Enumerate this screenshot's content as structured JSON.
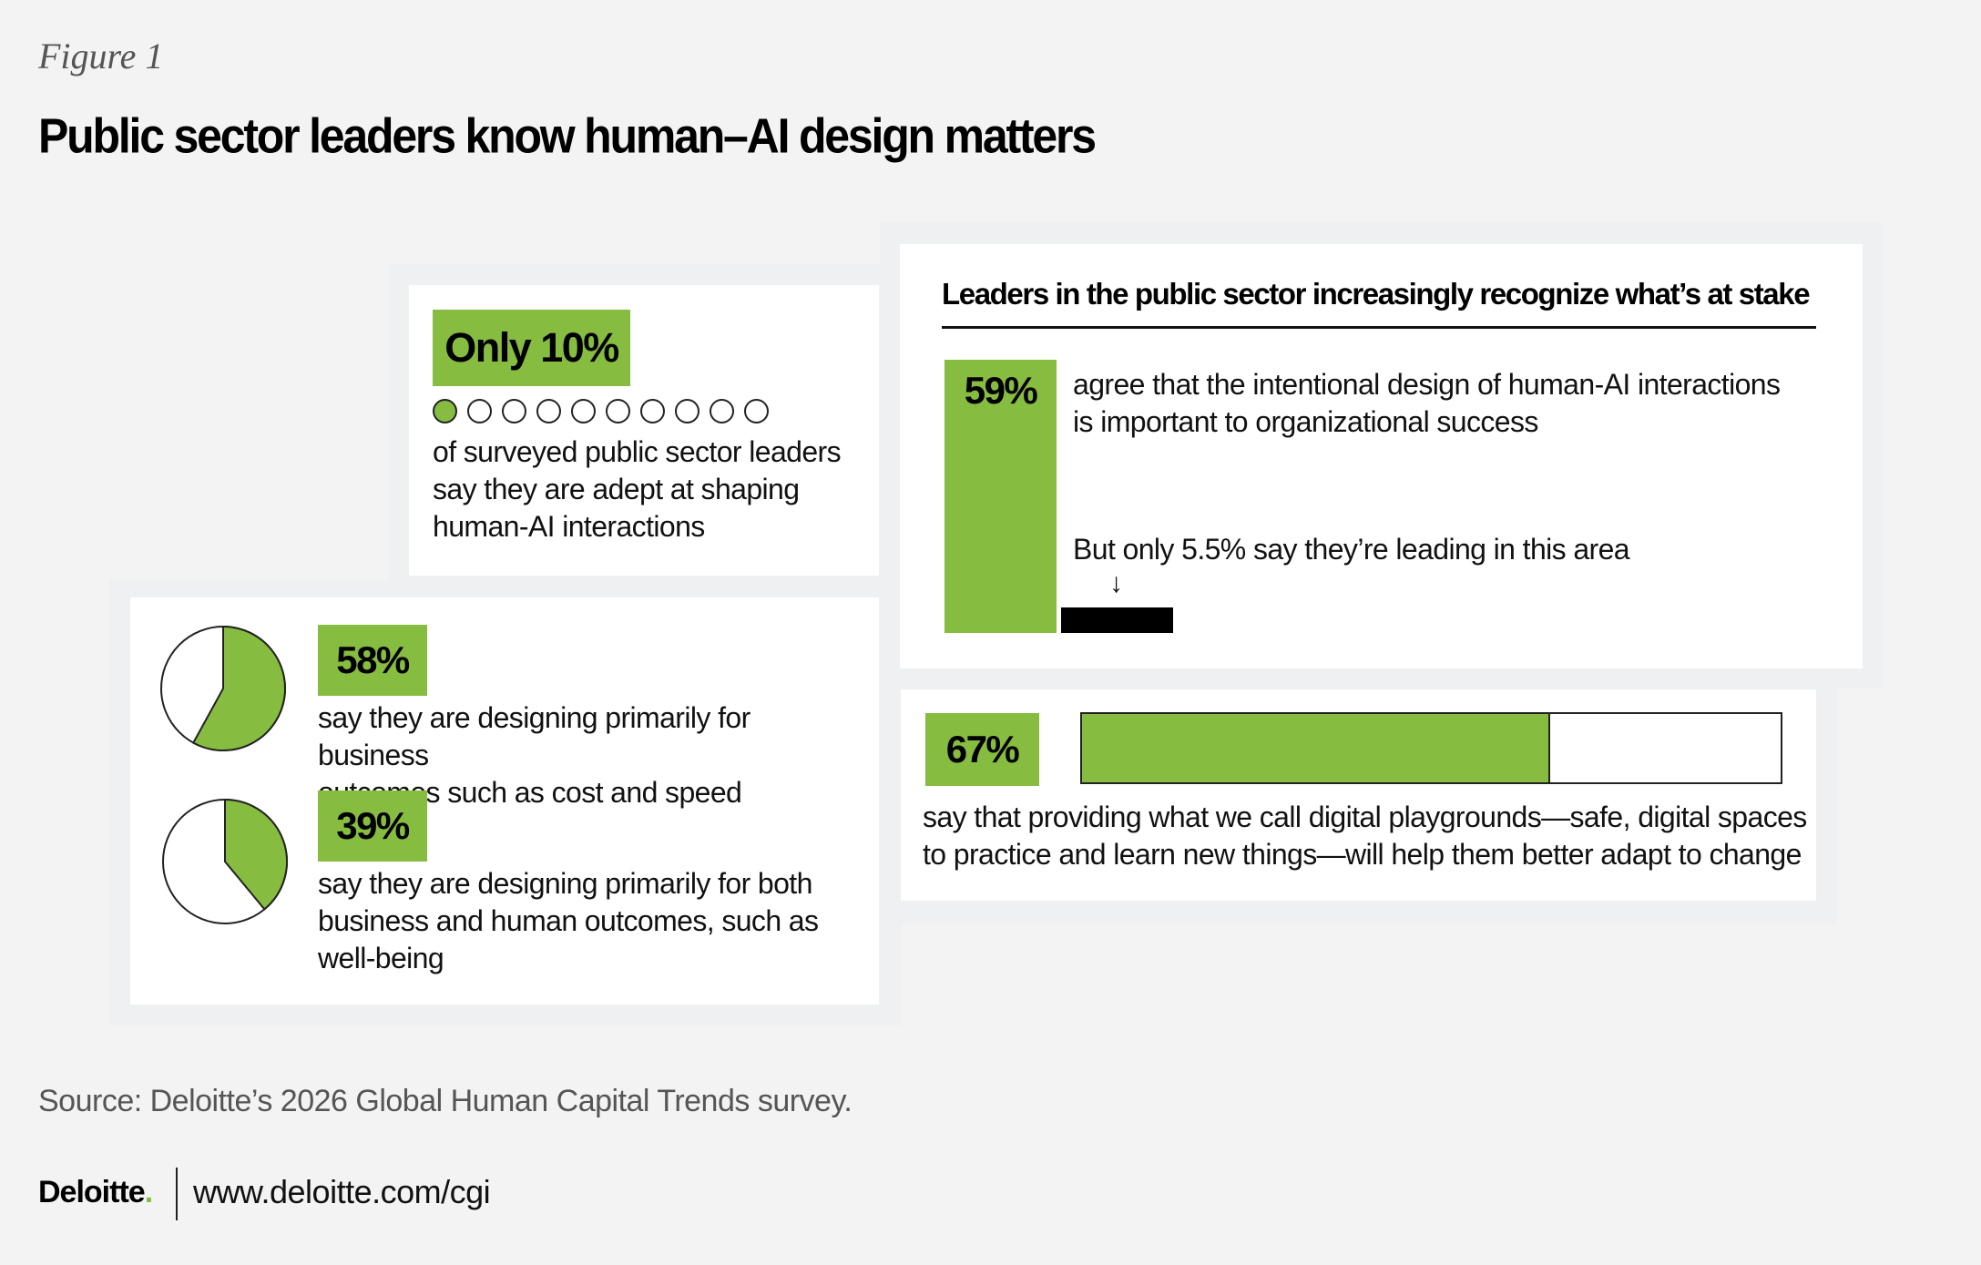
{
  "header": {
    "figure_label": "Figure 1",
    "title": "Public sector leaders know human–AI design matters"
  },
  "colors": {
    "accent": "#86bc40",
    "background": "#f3f3f3",
    "card": "#ffffff",
    "text": "#111111"
  },
  "stat_10": {
    "badge": "Only 10%",
    "filled_dots": 1,
    "total_dots": 10,
    "text_lines": [
      "of surveyed public sector leaders",
      "say they are adept at shaping",
      "human-AI interactions"
    ]
  },
  "pies": [
    {
      "badge": "58%",
      "value": 58,
      "text_lines": [
        "say they are designing primarily for business",
        "outcomes such as cost and speed"
      ]
    },
    {
      "badge": "39%",
      "value": 39,
      "text_lines": [
        "say they are designing primarily for both",
        "business and human outcomes, such as",
        "well-being"
      ]
    }
  ],
  "panel_59": {
    "heading": "Leaders in the public sector increasingly recognize what’s at stake",
    "badge": "59%",
    "value": 59,
    "text_lines": [
      "agree that the intentional design of human-AI interactions",
      "is important to organizational success"
    ],
    "leading_text": "But only 5.5% say they’re leading in this area",
    "leading_value": 5.5,
    "arrow": "↓"
  },
  "bar_67": {
    "badge": "67%",
    "value": 67,
    "text_lines": [
      "say that providing what we call digital playgrounds—safe, digital spaces",
      "to practice and learn new things—will help them better adapt to change"
    ]
  },
  "footer": {
    "source": "Source: Deloitte’s 2026 Global Human Capital Trends survey.",
    "logo": "Deloitte",
    "logo_dot": ".",
    "url": "www.deloitte.com/cgi"
  },
  "chart_data": [
    {
      "type": "pictogram",
      "title": "Only 10%",
      "values": [
        10
      ],
      "unit": "%",
      "description": "of surveyed public sector leaders say they are adept at shaping human-AI interactions"
    },
    {
      "type": "pie",
      "title": "58%",
      "values": [
        58,
        42
      ],
      "labels": [
        "designing primarily for business outcomes",
        "other"
      ]
    },
    {
      "type": "pie",
      "title": "39%",
      "values": [
        39,
        61
      ],
      "labels": [
        "designing primarily for both business and human outcomes",
        "other"
      ]
    },
    {
      "type": "bar",
      "title": "Leaders in the public sector increasingly recognize what’s at stake",
      "categories": [
        "agree intentional design is important",
        "say they're leading in this area"
      ],
      "values": [
        59,
        5.5
      ],
      "unit": "%"
    },
    {
      "type": "bar",
      "title": "67%",
      "categories": [
        "digital playgrounds will help adapt to change"
      ],
      "values": [
        67
      ],
      "range": [
        0,
        100
      ],
      "unit": "%"
    }
  ]
}
